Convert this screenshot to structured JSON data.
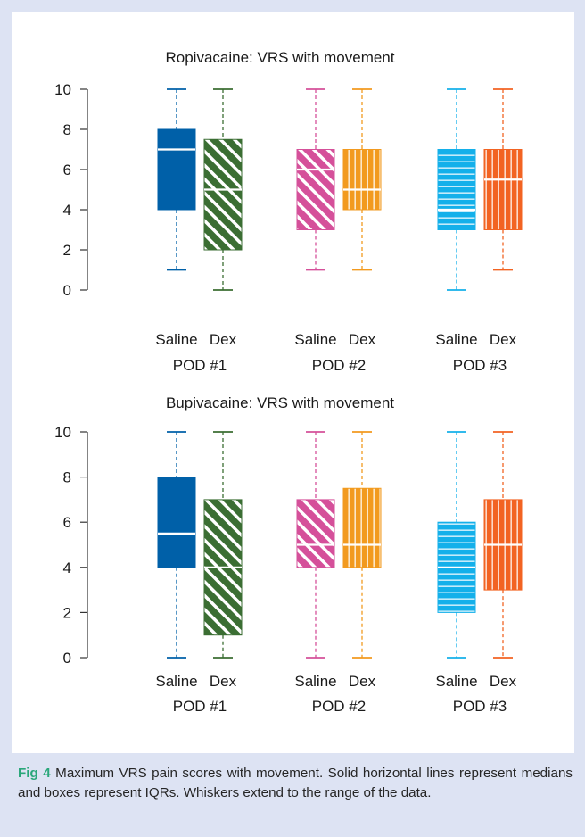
{
  "caption": {
    "label": "Fig 4",
    "text": " Maximum VRS pain scores with movement. Solid horizontal lines represent medians and boxes represent IQRs. Whiskers extend to the range of the data."
  },
  "chart_data": [
    {
      "type": "boxplot",
      "title": "Ropivacaine: VRS with movement",
      "ylim": [
        0,
        10
      ],
      "yticks": [
        0,
        2,
        4,
        6,
        8,
        10
      ],
      "groups": [
        "POD #1",
        "POD #2",
        "POD #3"
      ],
      "series_labels": [
        "Saline",
        "Dex"
      ],
      "boxes": [
        {
          "group": "POD #1",
          "label": "Saline",
          "min": 1,
          "q1": 4,
          "median": 7,
          "q3": 8,
          "max": 10,
          "color": "#0060a8",
          "pattern": "solid"
        },
        {
          "group": "POD #1",
          "label": "Dex",
          "min": 0,
          "q1": 2,
          "median": 5,
          "q3": 7.5,
          "max": 10,
          "color": "#3b6e33",
          "pattern": "diagonal"
        },
        {
          "group": "POD #2",
          "label": "Saline",
          "min": 1,
          "q1": 3,
          "median": 6,
          "q3": 7,
          "max": 10,
          "color": "#d5509a",
          "pattern": "diagonal"
        },
        {
          "group": "POD #2",
          "label": "Dex",
          "min": 1,
          "q1": 4,
          "median": 5,
          "q3": 7,
          "max": 10,
          "color": "#f29a1f",
          "pattern": "vertical"
        },
        {
          "group": "POD #3",
          "label": "Saline",
          "min": 0,
          "q1": 3,
          "median": 4,
          "q3": 7,
          "max": 10,
          "color": "#14b0ea",
          "pattern": "horizontal"
        },
        {
          "group": "POD #3",
          "label": "Dex",
          "min": 1,
          "q1": 3,
          "median": 5.5,
          "q3": 7,
          "max": 10,
          "color": "#f26322",
          "pattern": "vertical"
        }
      ]
    },
    {
      "type": "boxplot",
      "title": "Bupivacaine: VRS with movement",
      "ylim": [
        0,
        10
      ],
      "yticks": [
        0,
        2,
        4,
        6,
        8,
        10
      ],
      "groups": [
        "POD #1",
        "POD #2",
        "POD #3"
      ],
      "series_labels": [
        "Saline",
        "Dex"
      ],
      "boxes": [
        {
          "group": "POD #1",
          "label": "Saline",
          "min": 0,
          "q1": 4,
          "median": 5.5,
          "q3": 8,
          "max": 10,
          "color": "#0060a8",
          "pattern": "solid"
        },
        {
          "group": "POD #1",
          "label": "Dex",
          "min": 0,
          "q1": 1,
          "median": 4,
          "q3": 7,
          "max": 10,
          "color": "#3b6e33",
          "pattern": "diagonal"
        },
        {
          "group": "POD #2",
          "label": "Saline",
          "min": 0,
          "q1": 4,
          "median": 5,
          "q3": 7,
          "max": 10,
          "color": "#d5509a",
          "pattern": "diagonal"
        },
        {
          "group": "POD #2",
          "label": "Dex",
          "min": 0,
          "q1": 4,
          "median": 5,
          "q3": 7.5,
          "max": 10,
          "color": "#f29a1f",
          "pattern": "vertical"
        },
        {
          "group": "POD #3",
          "label": "Saline",
          "min": 0,
          "q1": 2,
          "median": 4,
          "q3": 6,
          "max": 10,
          "color": "#14b0ea",
          "pattern": "horizontal"
        },
        {
          "group": "POD #3",
          "label": "Dex",
          "min": 0,
          "q1": 3,
          "median": 5,
          "q3": 7,
          "max": 10,
          "color": "#f26322",
          "pattern": "vertical"
        }
      ]
    }
  ]
}
